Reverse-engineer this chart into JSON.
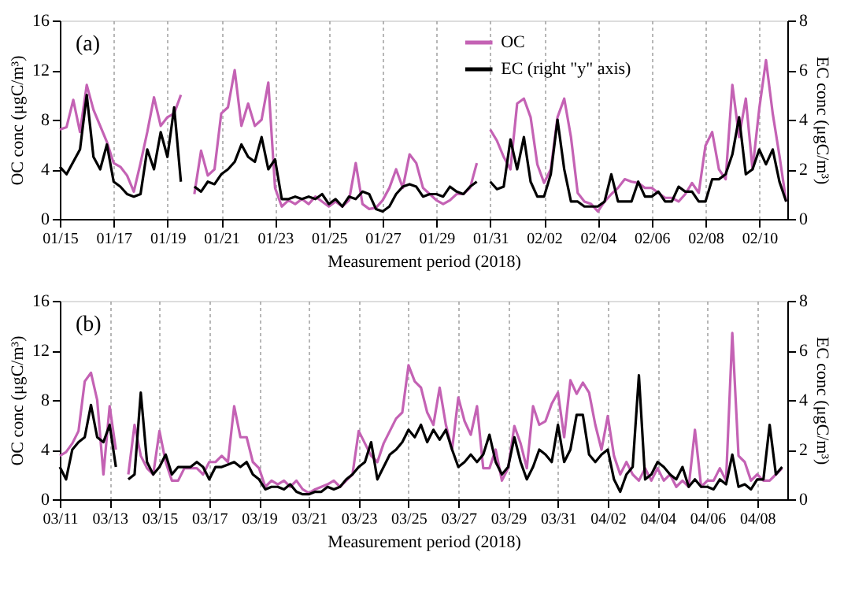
{
  "chart_data": [
    {
      "type": "line",
      "title": "(a)",
      "xlabel": "Measurement period (2018)",
      "ylabel": "OC conc (μgC/m³)",
      "y2label": "EC conc (μgC/m³)",
      "grid": "x",
      "legend": "top",
      "line_style": "solid",
      "xlim": [
        "2018-01-15T00:00",
        "2018-02-11T01:00"
      ],
      "xticks": [
        {
          "value": "2018-01-15",
          "label": "01/15"
        },
        {
          "value": "2018-01-17",
          "label": "01/17"
        },
        {
          "value": "2018-01-19",
          "label": "01/19"
        },
        {
          "value": "2018-01-21",
          "label": "01/21"
        },
        {
          "value": "2018-01-23",
          "label": "01/23"
        },
        {
          "value": "2018-01-25",
          "label": "01/25"
        },
        {
          "value": "2018-01-27",
          "label": "01/27"
        },
        {
          "value": "2018-01-29",
          "label": "01/29"
        },
        {
          "value": "2018-01-31",
          "label": "01/31"
        },
        {
          "value": "2018-02-02",
          "label": "02/02"
        },
        {
          "value": "2018-02-04",
          "label": "02/04"
        },
        {
          "value": "2018-02-06",
          "label": "02/06"
        },
        {
          "value": "2018-02-08",
          "label": "02/08"
        },
        {
          "value": "2018-02-10",
          "label": "02/10"
        }
      ],
      "ylim": [
        0,
        16
      ],
      "yticks": [
        0,
        4,
        8,
        12,
        16
      ],
      "y2lim": [
        0,
        8
      ],
      "y2ticks": [
        0,
        2,
        4,
        6,
        8
      ],
      "x": [
        "2018-01-15T00:00",
        "2018-01-15T06:00",
        "2018-01-15T12:00",
        "2018-01-15T18:00",
        "2018-01-16T00:00",
        "2018-01-16T06:00",
        "2018-01-16T12:00",
        "2018-01-16T18:00",
        "2018-01-17T00:00",
        "2018-01-17T06:00",
        "2018-01-17T12:00",
        "2018-01-17T18:00",
        "2018-01-18T00:00",
        "2018-01-18T06:00",
        "2018-01-18T12:00",
        "2018-01-18T18:00",
        "2018-01-19T00:00",
        "2018-01-19T06:00",
        "2018-01-19T12:00",
        "2018-01-19T18:00",
        "2018-01-20T00:00",
        "2018-01-20T06:00",
        "2018-01-20T12:00",
        "2018-01-20T18:00",
        "2018-01-21T00:00",
        "2018-01-21T06:00",
        "2018-01-21T12:00",
        "2018-01-21T18:00",
        "2018-01-22T00:00",
        "2018-01-22T06:00",
        "2018-01-22T12:00",
        "2018-01-22T18:00",
        "2018-01-23T00:00",
        "2018-01-23T06:00",
        "2018-01-23T12:00",
        "2018-01-23T18:00",
        "2018-01-24T00:00",
        "2018-01-24T06:00",
        "2018-01-24T12:00",
        "2018-01-24T18:00",
        "2018-01-25T00:00",
        "2018-01-25T06:00",
        "2018-01-25T12:00",
        "2018-01-25T18:00",
        "2018-01-26T00:00",
        "2018-01-26T06:00",
        "2018-01-26T12:00",
        "2018-01-26T18:00",
        "2018-01-27T00:00",
        "2018-01-27T06:00",
        "2018-01-27T12:00",
        "2018-01-27T18:00",
        "2018-01-28T00:00",
        "2018-01-28T06:00",
        "2018-01-28T12:00",
        "2018-01-28T18:00",
        "2018-01-29T00:00",
        "2018-01-29T06:00",
        "2018-01-29T12:00",
        "2018-01-29T18:00",
        "2018-01-30T00:00",
        "2018-01-30T06:00",
        "2018-01-30T12:00",
        "2018-01-30T18:00",
        "2018-01-31T00:00",
        "2018-01-31T06:00",
        "2018-01-31T12:00",
        "2018-01-31T18:00",
        "2018-02-01T00:00",
        "2018-02-01T06:00",
        "2018-02-01T12:00",
        "2018-02-01T18:00",
        "2018-02-02T00:00",
        "2018-02-02T06:00",
        "2018-02-02T12:00",
        "2018-02-02T18:00",
        "2018-02-03T00:00",
        "2018-02-03T06:00",
        "2018-02-03T12:00",
        "2018-02-03T18:00",
        "2018-02-04T00:00",
        "2018-02-04T06:00",
        "2018-02-04T12:00",
        "2018-02-04T18:00",
        "2018-02-05T00:00",
        "2018-02-05T06:00",
        "2018-02-05T12:00",
        "2018-02-05T18:00",
        "2018-02-06T00:00",
        "2018-02-06T06:00",
        "2018-02-06T12:00",
        "2018-02-06T18:00",
        "2018-02-07T00:00",
        "2018-02-07T06:00",
        "2018-02-07T12:00",
        "2018-02-07T18:00",
        "2018-02-08T00:00",
        "2018-02-08T06:00",
        "2018-02-08T12:00",
        "2018-02-08T18:00",
        "2018-02-09T00:00",
        "2018-02-09T06:00",
        "2018-02-09T12:00",
        "2018-02-09T18:00",
        "2018-02-10T00:00",
        "2018-02-10T06:00",
        "2018-02-10T12:00",
        "2018-02-10T18:00",
        "2018-02-11T00:00"
      ],
      "series": [
        {
          "name": "OC",
          "color": "#c462b4",
          "values": [
            7.2,
            7.4,
            9.6,
            7.0,
            10.8,
            8.8,
            7.5,
            6.2,
            4.5,
            4.2,
            3.5,
            2.2,
            4.5,
            7.0,
            9.8,
            7.5,
            8.2,
            8.5,
            10.0,
            null,
            2.0,
            5.5,
            3.5,
            4.0,
            8.5,
            9.0,
            12.0,
            7.5,
            9.3,
            7.5,
            8.0,
            11.0,
            2.5,
            1.0,
            1.5,
            1.2,
            1.6,
            1.2,
            1.8,
            1.4,
            1.0,
            1.4,
            1.0,
            1.5,
            4.5,
            1.2,
            0.8,
            0.9,
            1.5,
            2.5,
            4.0,
            2.5,
            5.2,
            4.5,
            2.5,
            2.0,
            1.5,
            1.2,
            1.5,
            2.0,
            2.0,
            2.5,
            4.5,
            null,
            7.2,
            6.3,
            5.0,
            4.0,
            9.3,
            9.7,
            8.2,
            4.4,
            2.9,
            4.0,
            8.2,
            9.7,
            6.6,
            2.1,
            1.4,
            1.2,
            0.6,
            1.4,
            2.0,
            2.5,
            3.2,
            3.0,
            2.9,
            2.5,
            2.5,
            2.1,
            1.7,
            1.7,
            1.4,
            2.0,
            2.9,
            2.1,
            5.9,
            7.0,
            4.0,
            3.2,
            10.8,
            6.6,
            9.7,
            4.0,
            8.9,
            12.8,
            8.5,
            5.1,
            1.4
          ]
        },
        {
          "name": "EC (right \"y\" axis)",
          "color": "#000000",
          "axis": "y2",
          "values": [
            2.1,
            1.8,
            2.3,
            2.8,
            5.0,
            2.5,
            2.0,
            3.0,
            1.5,
            1.3,
            1.0,
            0.9,
            1.0,
            2.8,
            2.0,
            3.5,
            2.5,
            4.5,
            1.5,
            null,
            1.3,
            1.1,
            1.5,
            1.4,
            1.8,
            2.0,
            2.3,
            3.0,
            2.5,
            2.3,
            3.3,
            2.0,
            2.4,
            0.8,
            0.8,
            0.9,
            0.8,
            0.9,
            0.8,
            1.0,
            0.6,
            0.8,
            0.5,
            0.9,
            0.8,
            1.1,
            1.0,
            0.4,
            0.3,
            0.5,
            1.0,
            1.3,
            1.4,
            1.3,
            0.9,
            1.0,
            1.0,
            0.9,
            1.3,
            1.1,
            1.0,
            1.3,
            1.5,
            null,
            1.5,
            1.2,
            1.3,
            3.2,
            2.0,
            3.3,
            1.5,
            0.9,
            0.9,
            1.8,
            4.0,
            2.0,
            0.7,
            0.7,
            0.5,
            0.5,
            0.5,
            0.7,
            1.8,
            0.7,
            0.7,
            0.7,
            1.5,
            0.9,
            0.9,
            1.1,
            0.7,
            0.7,
            1.3,
            1.1,
            1.1,
            0.7,
            0.7,
            1.6,
            1.6,
            1.8,
            2.6,
            4.1,
            1.8,
            2.0,
            2.8,
            2.2,
            2.8,
            1.5,
            0.7
          ]
        }
      ]
    },
    {
      "type": "line",
      "title": "(b)",
      "xlabel": "Measurement period (2018)",
      "ylabel": "OC conc (μgC/m³)",
      "y2label": "EC conc (μgC/m³)",
      "grid": "x",
      "legend": "top",
      "line_style": "solid",
      "xlim": [
        "2018-03-11T00:00",
        "2018-04-09T05:00"
      ],
      "xticks": [
        {
          "value": "2018-03-11",
          "label": "03/11"
        },
        {
          "value": "2018-03-13",
          "label": "03/13"
        },
        {
          "value": "2018-03-15",
          "label": "03/15"
        },
        {
          "value": "2018-03-17",
          "label": "03/17"
        },
        {
          "value": "2018-03-19",
          "label": "03/19"
        },
        {
          "value": "2018-03-21",
          "label": "03/21"
        },
        {
          "value": "2018-03-23",
          "label": "03/23"
        },
        {
          "value": "2018-03-25",
          "label": "03/25"
        },
        {
          "value": "2018-03-27",
          "label": "03/27"
        },
        {
          "value": "2018-03-29",
          "label": "03/29"
        },
        {
          "value": "2018-03-31",
          "label": "03/31"
        },
        {
          "value": "2018-04-02",
          "label": "04/02"
        },
        {
          "value": "2018-04-04",
          "label": "04/04"
        },
        {
          "value": "2018-04-06",
          "label": "04/06"
        },
        {
          "value": "2018-04-08",
          "label": "04/08"
        }
      ],
      "ylim": [
        0,
        16
      ],
      "yticks": [
        0,
        4,
        8,
        12,
        16
      ],
      "y2lim": [
        0,
        8
      ],
      "y2ticks": [
        0,
        2,
        4,
        6,
        8
      ],
      "x": [
        "2018-03-11T00:00",
        "2018-03-11T06:00",
        "2018-03-11T12:00",
        "2018-03-11T18:00",
        "2018-03-12T00:00",
        "2018-03-12T06:00",
        "2018-03-12T12:00",
        "2018-03-12T18:00",
        "2018-03-13T00:00",
        "2018-03-13T06:00",
        "2018-03-13T12:00",
        "2018-03-13T18:00",
        "2018-03-14T00:00",
        "2018-03-14T06:00",
        "2018-03-14T12:00",
        "2018-03-14T18:00",
        "2018-03-15T00:00",
        "2018-03-15T06:00",
        "2018-03-15T12:00",
        "2018-03-15T18:00",
        "2018-03-16T00:00",
        "2018-03-16T06:00",
        "2018-03-16T12:00",
        "2018-03-16T18:00",
        "2018-03-17T00:00",
        "2018-03-17T06:00",
        "2018-03-17T12:00",
        "2018-03-17T18:00",
        "2018-03-18T00:00",
        "2018-03-18T06:00",
        "2018-03-18T12:00",
        "2018-03-18T18:00",
        "2018-03-19T00:00",
        "2018-03-19T06:00",
        "2018-03-19T12:00",
        "2018-03-19T18:00",
        "2018-03-20T00:00",
        "2018-03-20T06:00",
        "2018-03-20T12:00",
        "2018-03-20T18:00",
        "2018-03-21T00:00",
        "2018-03-21T06:00",
        "2018-03-21T12:00",
        "2018-03-21T18:00",
        "2018-03-22T00:00",
        "2018-03-22T06:00",
        "2018-03-22T12:00",
        "2018-03-22T18:00",
        "2018-03-23T00:00",
        "2018-03-23T06:00",
        "2018-03-23T12:00",
        "2018-03-23T18:00",
        "2018-03-24T00:00",
        "2018-03-24T06:00",
        "2018-03-24T12:00",
        "2018-03-24T18:00",
        "2018-03-25T00:00",
        "2018-03-25T06:00",
        "2018-03-25T12:00",
        "2018-03-25T18:00",
        "2018-03-26T00:00",
        "2018-03-26T06:00",
        "2018-03-26T12:00",
        "2018-03-26T18:00",
        "2018-03-27T00:00",
        "2018-03-27T06:00",
        "2018-03-27T12:00",
        "2018-03-27T18:00",
        "2018-03-28T00:00",
        "2018-03-28T06:00",
        "2018-03-28T12:00",
        "2018-03-28T18:00",
        "2018-03-29T00:00",
        "2018-03-29T06:00",
        "2018-03-29T12:00",
        "2018-03-29T18:00",
        "2018-03-30T00:00",
        "2018-03-30T06:00",
        "2018-03-30T12:00",
        "2018-03-30T18:00",
        "2018-03-31T00:00",
        "2018-03-31T06:00",
        "2018-03-31T12:00",
        "2018-03-31T18:00",
        "2018-04-01T00:00",
        "2018-04-01T06:00",
        "2018-04-01T12:00",
        "2018-04-01T18:00",
        "2018-04-02T00:00",
        "2018-04-02T06:00",
        "2018-04-02T12:00",
        "2018-04-02T18:00",
        "2018-04-03T00:00",
        "2018-04-03T06:00",
        "2018-04-03T12:00",
        "2018-04-03T18:00",
        "2018-04-04T00:00",
        "2018-04-04T06:00",
        "2018-04-04T12:00",
        "2018-04-04T18:00",
        "2018-04-05T00:00",
        "2018-04-05T06:00",
        "2018-04-05T12:00",
        "2018-04-05T18:00",
        "2018-04-06T00:00",
        "2018-04-06T06:00",
        "2018-04-06T12:00",
        "2018-04-06T18:00",
        "2018-04-07T00:00",
        "2018-04-07T06:00",
        "2018-04-07T12:00",
        "2018-04-07T18:00",
        "2018-04-08T00:00",
        "2018-04-08T06:00",
        "2018-04-08T12:00",
        "2018-04-08T18:00",
        "2018-04-09T00:00"
      ],
      "series": [
        {
          "name": "OC",
          "color": "#c462b4",
          "values": [
            3.5,
            3.8,
            4.5,
            5.5,
            9.5,
            10.2,
            8.0,
            2.0,
            7.5,
            4.0,
            null,
            2.0,
            6.0,
            3.5,
            2.5,
            2.0,
            5.5,
            3.0,
            1.5,
            1.5,
            2.5,
            2.5,
            2.5,
            2.0,
            3.0,
            3.0,
            3.5,
            3.0,
            7.5,
            5.0,
            5.0,
            3.0,
            2.5,
            1.0,
            1.5,
            1.2,
            1.5,
            1.0,
            1.5,
            0.8,
            0.5,
            0.8,
            1.0,
            1.2,
            1.5,
            1.0,
            1.5,
            2.0,
            5.5,
            4.5,
            3.5,
            3.0,
            4.5,
            5.5,
            6.5,
            7.0,
            10.8,
            9.5,
            9.0,
            7.0,
            6.0,
            9.0,
            6.0,
            4.0,
            8.2,
            6.3,
            5.2,
            7.5,
            2.5,
            2.5,
            4.0,
            1.5,
            2.5,
            5.9,
            4.5,
            2.5,
            7.5,
            6.0,
            6.3,
            7.7,
            8.6,
            5.0,
            9.6,
            8.5,
            9.4,
            8.6,
            6.0,
            4.0,
            6.7,
            3.5,
            2.0,
            3.0,
            2.0,
            1.5,
            2.5,
            1.5,
            2.5,
            1.5,
            2.0,
            1.0,
            1.5,
            1.0,
            5.6,
            1.0,
            1.5,
            1.5,
            2.5,
            1.5,
            13.4,
            3.5,
            3.0,
            1.5,
            2.0,
            1.5,
            1.5,
            2.0,
            2.5
          ]
        },
        {
          "name": "EC (right \"y\" axis)",
          "color": "#000000",
          "axis": "y2",
          "values": [
            1.3,
            0.8,
            2.0,
            2.3,
            2.5,
            3.8,
            2.5,
            2.3,
            3.0,
            1.3,
            null,
            0.8,
            1.0,
            4.3,
            1.5,
            1.0,
            1.3,
            1.8,
            1.0,
            1.3,
            1.3,
            1.3,
            1.5,
            1.3,
            0.8,
            1.3,
            1.3,
            1.4,
            1.5,
            1.3,
            1.5,
            1.0,
            0.8,
            0.4,
            0.5,
            0.5,
            0.4,
            0.6,
            0.3,
            0.2,
            0.2,
            0.3,
            0.3,
            0.5,
            0.4,
            0.5,
            0.8,
            1.0,
            1.3,
            1.5,
            2.3,
            0.8,
            1.3,
            1.8,
            2.0,
            2.3,
            2.8,
            2.5,
            3.0,
            2.3,
            2.8,
            2.4,
            2.8,
            2.0,
            1.3,
            1.5,
            1.8,
            1.5,
            1.8,
            2.6,
            1.5,
            1.0,
            1.3,
            2.5,
            1.5,
            0.8,
            1.3,
            2.0,
            1.8,
            1.5,
            3.0,
            1.5,
            2.0,
            3.4,
            3.4,
            1.8,
            1.5,
            1.8,
            2.0,
            0.8,
            0.3,
            1.0,
            1.3,
            5.0,
            0.8,
            1.0,
            1.5,
            1.3,
            1.0,
            0.8,
            1.3,
            0.5,
            0.8,
            0.5,
            0.5,
            0.4,
            0.8,
            0.6,
            1.8,
            0.5,
            0.6,
            0.4,
            0.8,
            0.8,
            3.0,
            1.0,
            1.3
          ]
        }
      ]
    }
  ]
}
